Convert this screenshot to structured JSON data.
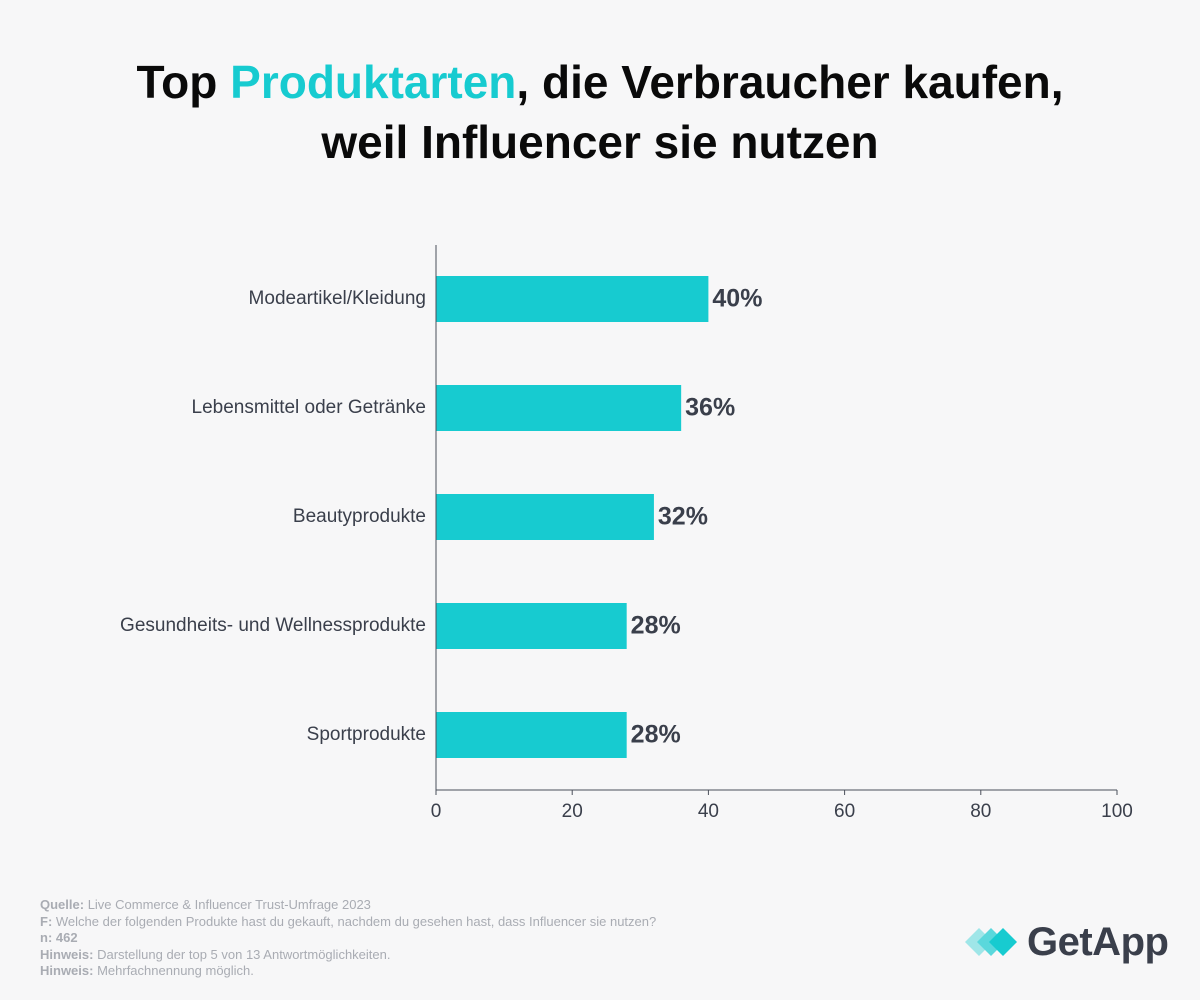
{
  "header": {
    "title_prefix": "Top ",
    "title_highlight": "Produktarten",
    "title_suffix": ", die Verbraucher kaufen,",
    "title_line2": "weil Influencer sie nutzen"
  },
  "colors": {
    "bar": "#17cbd0",
    "text": "#3a3f4b",
    "highlight": "#17cbd0"
  },
  "chart_data": {
    "type": "bar",
    "orientation": "horizontal",
    "categories": [
      "Modeartikel/Kleidung",
      "Lebensmittel oder Getränke",
      "Beautyprodukte",
      "Gesundheits- und Wellnessprodukte",
      "Sportprodukte"
    ],
    "values": [
      40,
      36,
      32,
      28,
      28
    ],
    "value_labels": [
      "40%",
      "36%",
      "32%",
      "28%",
      "28%"
    ],
    "xlim": [
      0,
      100
    ],
    "xticks": [
      0,
      20,
      40,
      60,
      80,
      100
    ],
    "grid": false,
    "title": "Top Produktarten, die Verbraucher kaufen, weil Influencer sie nutzen"
  },
  "footer": {
    "source_key": "Quelle:",
    "source": " Live Commerce & Influencer Trust-Umfrage 2023",
    "question_key": "F:",
    "question": " Welche der folgenden Produkte hast du gekauft, nachdem du gesehen hast, dass Influencer sie nutzen?",
    "n_key": "n:",
    "n": " 462",
    "note1_key": "Hinweis:",
    "note1": " Darstellung der top 5 von 13 Antwortmöglichkeiten.",
    "note2_key": "Hinweis:",
    "note2": " Mehrfachnennung möglich."
  },
  "logo": {
    "brand": "GetApp",
    "icon": "getapp-chevrons-icon"
  }
}
